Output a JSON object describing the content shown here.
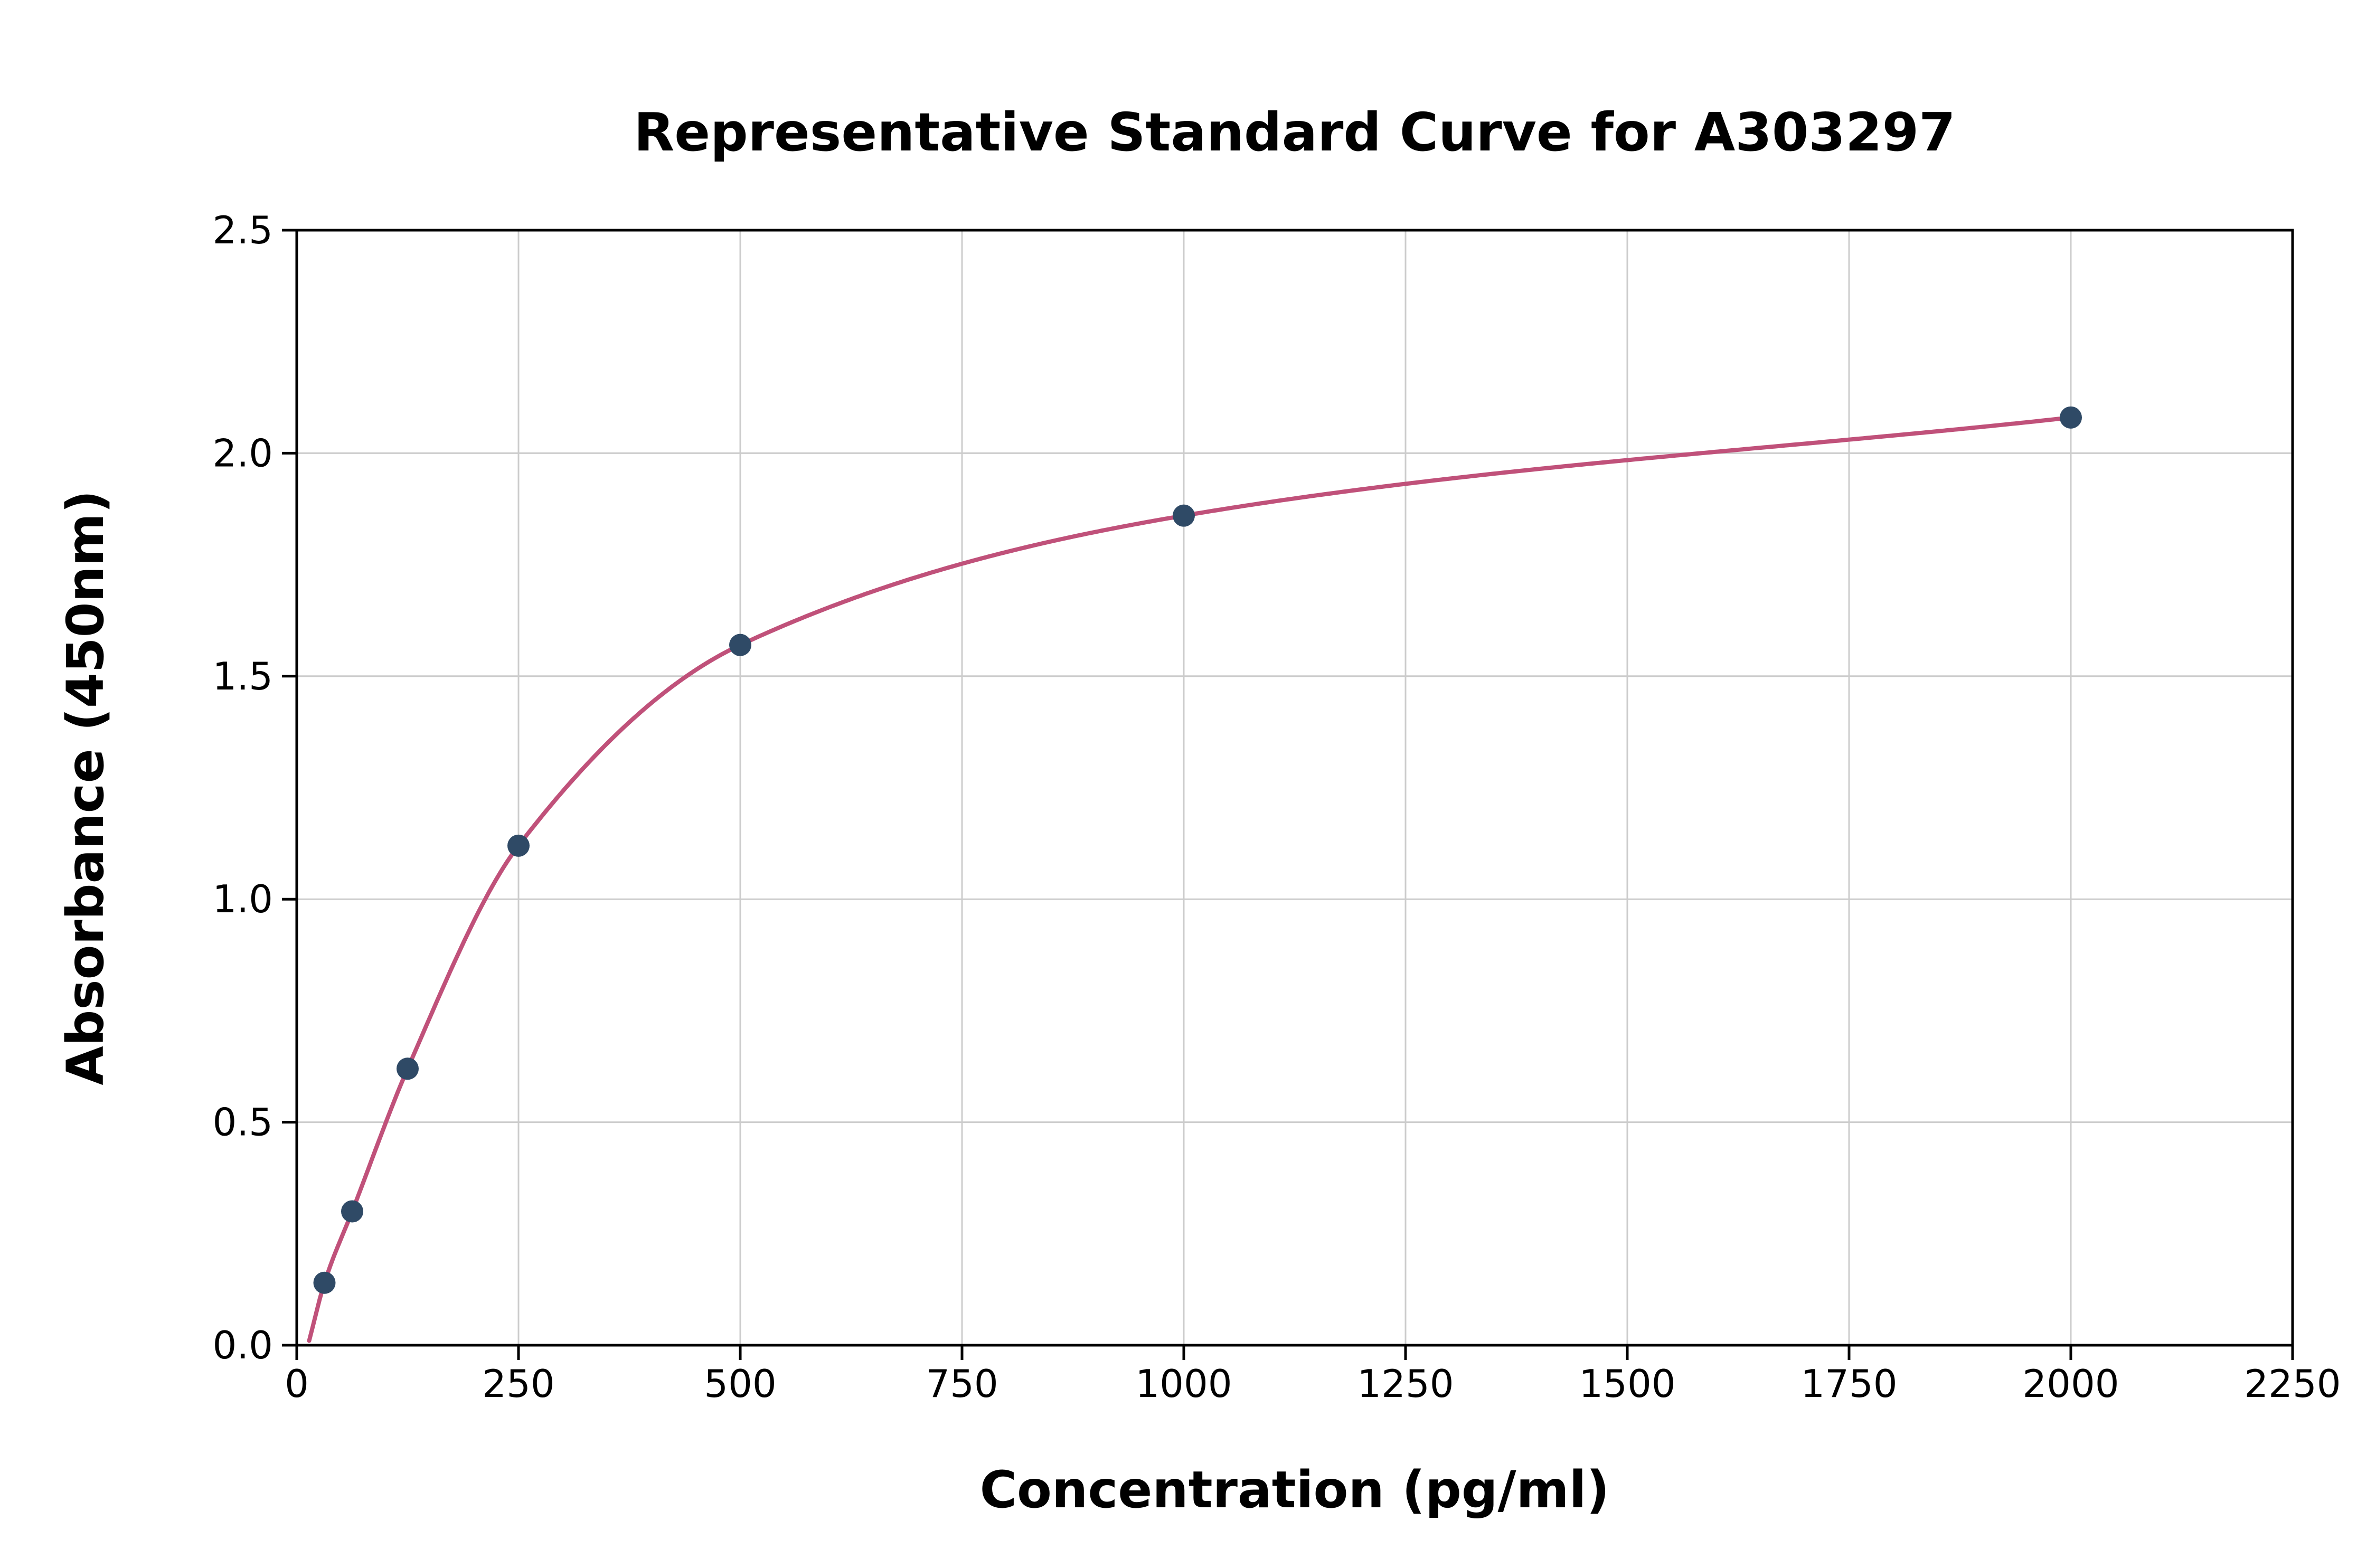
{
  "chart_data": {
    "type": "scatter",
    "title": "Representative Standard Curve for A303297",
    "xlabel": "Concentration (pg/ml)",
    "ylabel": "Absorbance (450nm)",
    "xlim": [
      0,
      2250
    ],
    "ylim": [
      0,
      2.5
    ],
    "x_ticks": [
      0,
      250,
      500,
      750,
      1000,
      1250,
      1500,
      1750,
      2000,
      2250
    ],
    "x_tick_labels": [
      "0",
      "250",
      "500",
      "750",
      "1000",
      "1250",
      "1500",
      "1750",
      "2000",
      "2250"
    ],
    "y_ticks": [
      0,
      0.5,
      1,
      1.5,
      2,
      2.5
    ],
    "y_tick_labels": [
      "0.0",
      "0.5",
      "1.0",
      "1.5",
      "2.0",
      "2.5"
    ],
    "grid": true,
    "legend": false,
    "series": [
      {
        "name": "standard-points",
        "type": "scatter",
        "x": [
          31.25,
          62.5,
          125,
          250,
          500,
          1000,
          2000
        ],
        "y": [
          0.14,
          0.3,
          0.62,
          1.12,
          1.57,
          1.86,
          2.08
        ],
        "color": "#2f4a66"
      },
      {
        "name": "fitted-curve",
        "type": "line",
        "x": [
          14,
          31.25,
          62.5,
          125,
          250,
          500,
          1000,
          2000
        ],
        "y": [
          0.01,
          0.14,
          0.3,
          0.62,
          1.12,
          1.57,
          1.86,
          2.08
        ],
        "color": "#c0517a"
      }
    ],
    "style": {
      "grid_color": "#cccccc",
      "axis_color": "#000000",
      "background": "#ffffff",
      "marker_radius": 21,
      "curve_width": 8
    }
  }
}
